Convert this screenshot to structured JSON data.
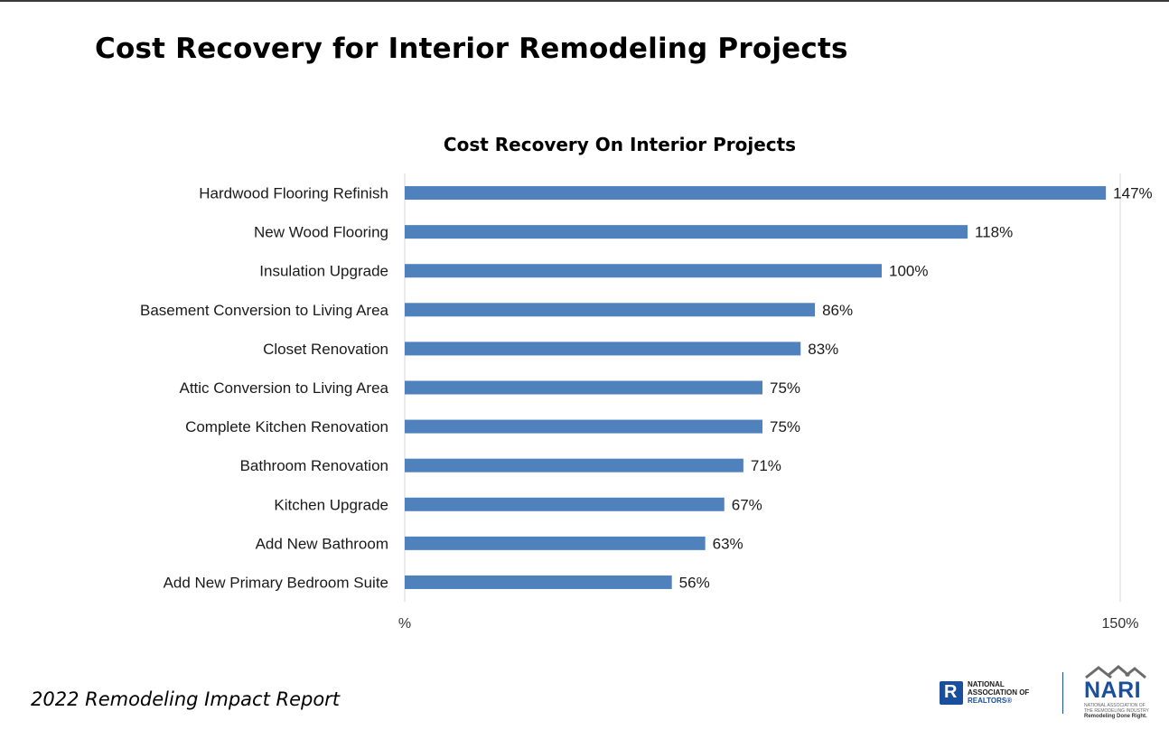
{
  "page": {
    "title": "Cost Recovery for Interior Remodeling Projects",
    "footer": "2022 Remodeling Impact Report"
  },
  "logos": {
    "nar_line1": "NATIONAL",
    "nar_line2": "ASSOCIATION OF",
    "nar_line3": "REALTORS®",
    "nari_word": "NARI",
    "nari_sub": "National Association of the Remodeling Industry",
    "nari_tag": "Remodeling Done Right.",
    "brand_blue": "#1a4f9c"
  },
  "chart_data": {
    "type": "bar",
    "orientation": "horizontal",
    "title": "Cost Recovery On Interior Projects",
    "categories": [
      "Hardwood Flooring Refinish",
      "New Wood Flooring",
      "Insulation Upgrade",
      "Basement Conversion to Living Area",
      "Closet Renovation",
      "Attic Conversion to Living Area",
      "Complete Kitchen Renovation",
      "Bathroom Renovation",
      "Kitchen Upgrade",
      "Add New Bathroom",
      "Add New Primary Bedroom Suite"
    ],
    "values": [
      147,
      118,
      100,
      86,
      83,
      75,
      75,
      71,
      67,
      63,
      56
    ],
    "value_labels": [
      "147%",
      "118%",
      "100%",
      "86%",
      "83%",
      "75%",
      "75%",
      "71%",
      "67%",
      "63%",
      "56%"
    ],
    "xlim": [
      0,
      150
    ],
    "x_tick_labels": [
      "%",
      "150%"
    ],
    "xlabel": "",
    "ylabel": "",
    "grid": false,
    "bar_color": "#4f81bd"
  }
}
